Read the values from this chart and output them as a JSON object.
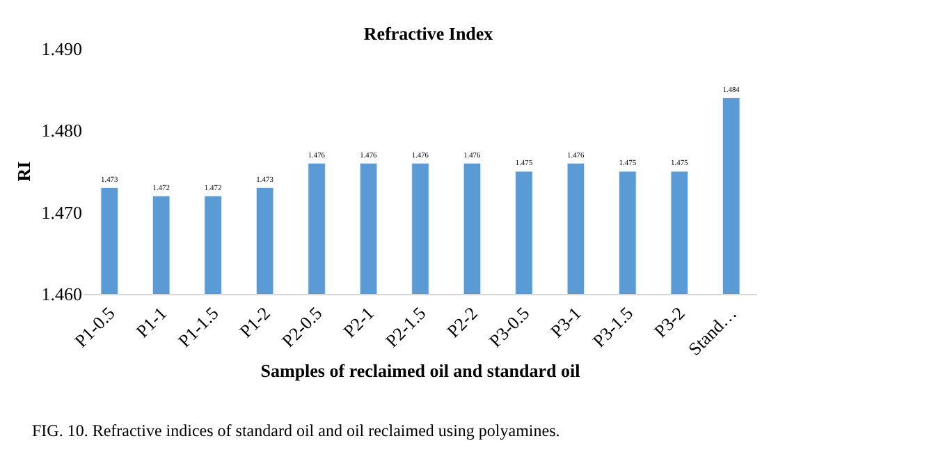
{
  "chart_data": {
    "type": "bar",
    "title": "Refractive Index",
    "xlabel": "Samples of reclaimed oil and standard oil",
    "ylabel": "RI",
    "categories": [
      "P1-0.5",
      "P1-1",
      "P1-1.5",
      "P1-2",
      "P2-0.5",
      "P2-1",
      "P2-1.5",
      "P2-2",
      "P3-0.5",
      "P3-1",
      "P3-1.5",
      "P3-2",
      "Stand…"
    ],
    "values": [
      1.473,
      1.472,
      1.472,
      1.473,
      1.476,
      1.476,
      1.476,
      1.476,
      1.475,
      1.476,
      1.475,
      1.475,
      1.484
    ],
    "color": "#5b9bd5",
    "ylim": [
      1.46,
      1.49
    ],
    "yticks": [
      {
        "value": 1.46,
        "label": "1.460"
      },
      {
        "value": 1.47,
        "label": "1.470"
      },
      {
        "value": 1.48,
        "label": "1.480"
      },
      {
        "value": 1.49,
        "label": "1.490"
      }
    ],
    "data_labels": true,
    "annotations": [
      "FIG. 10. Refractive indices of standard oil and oil reclaimed using polyamines."
    ]
  }
}
